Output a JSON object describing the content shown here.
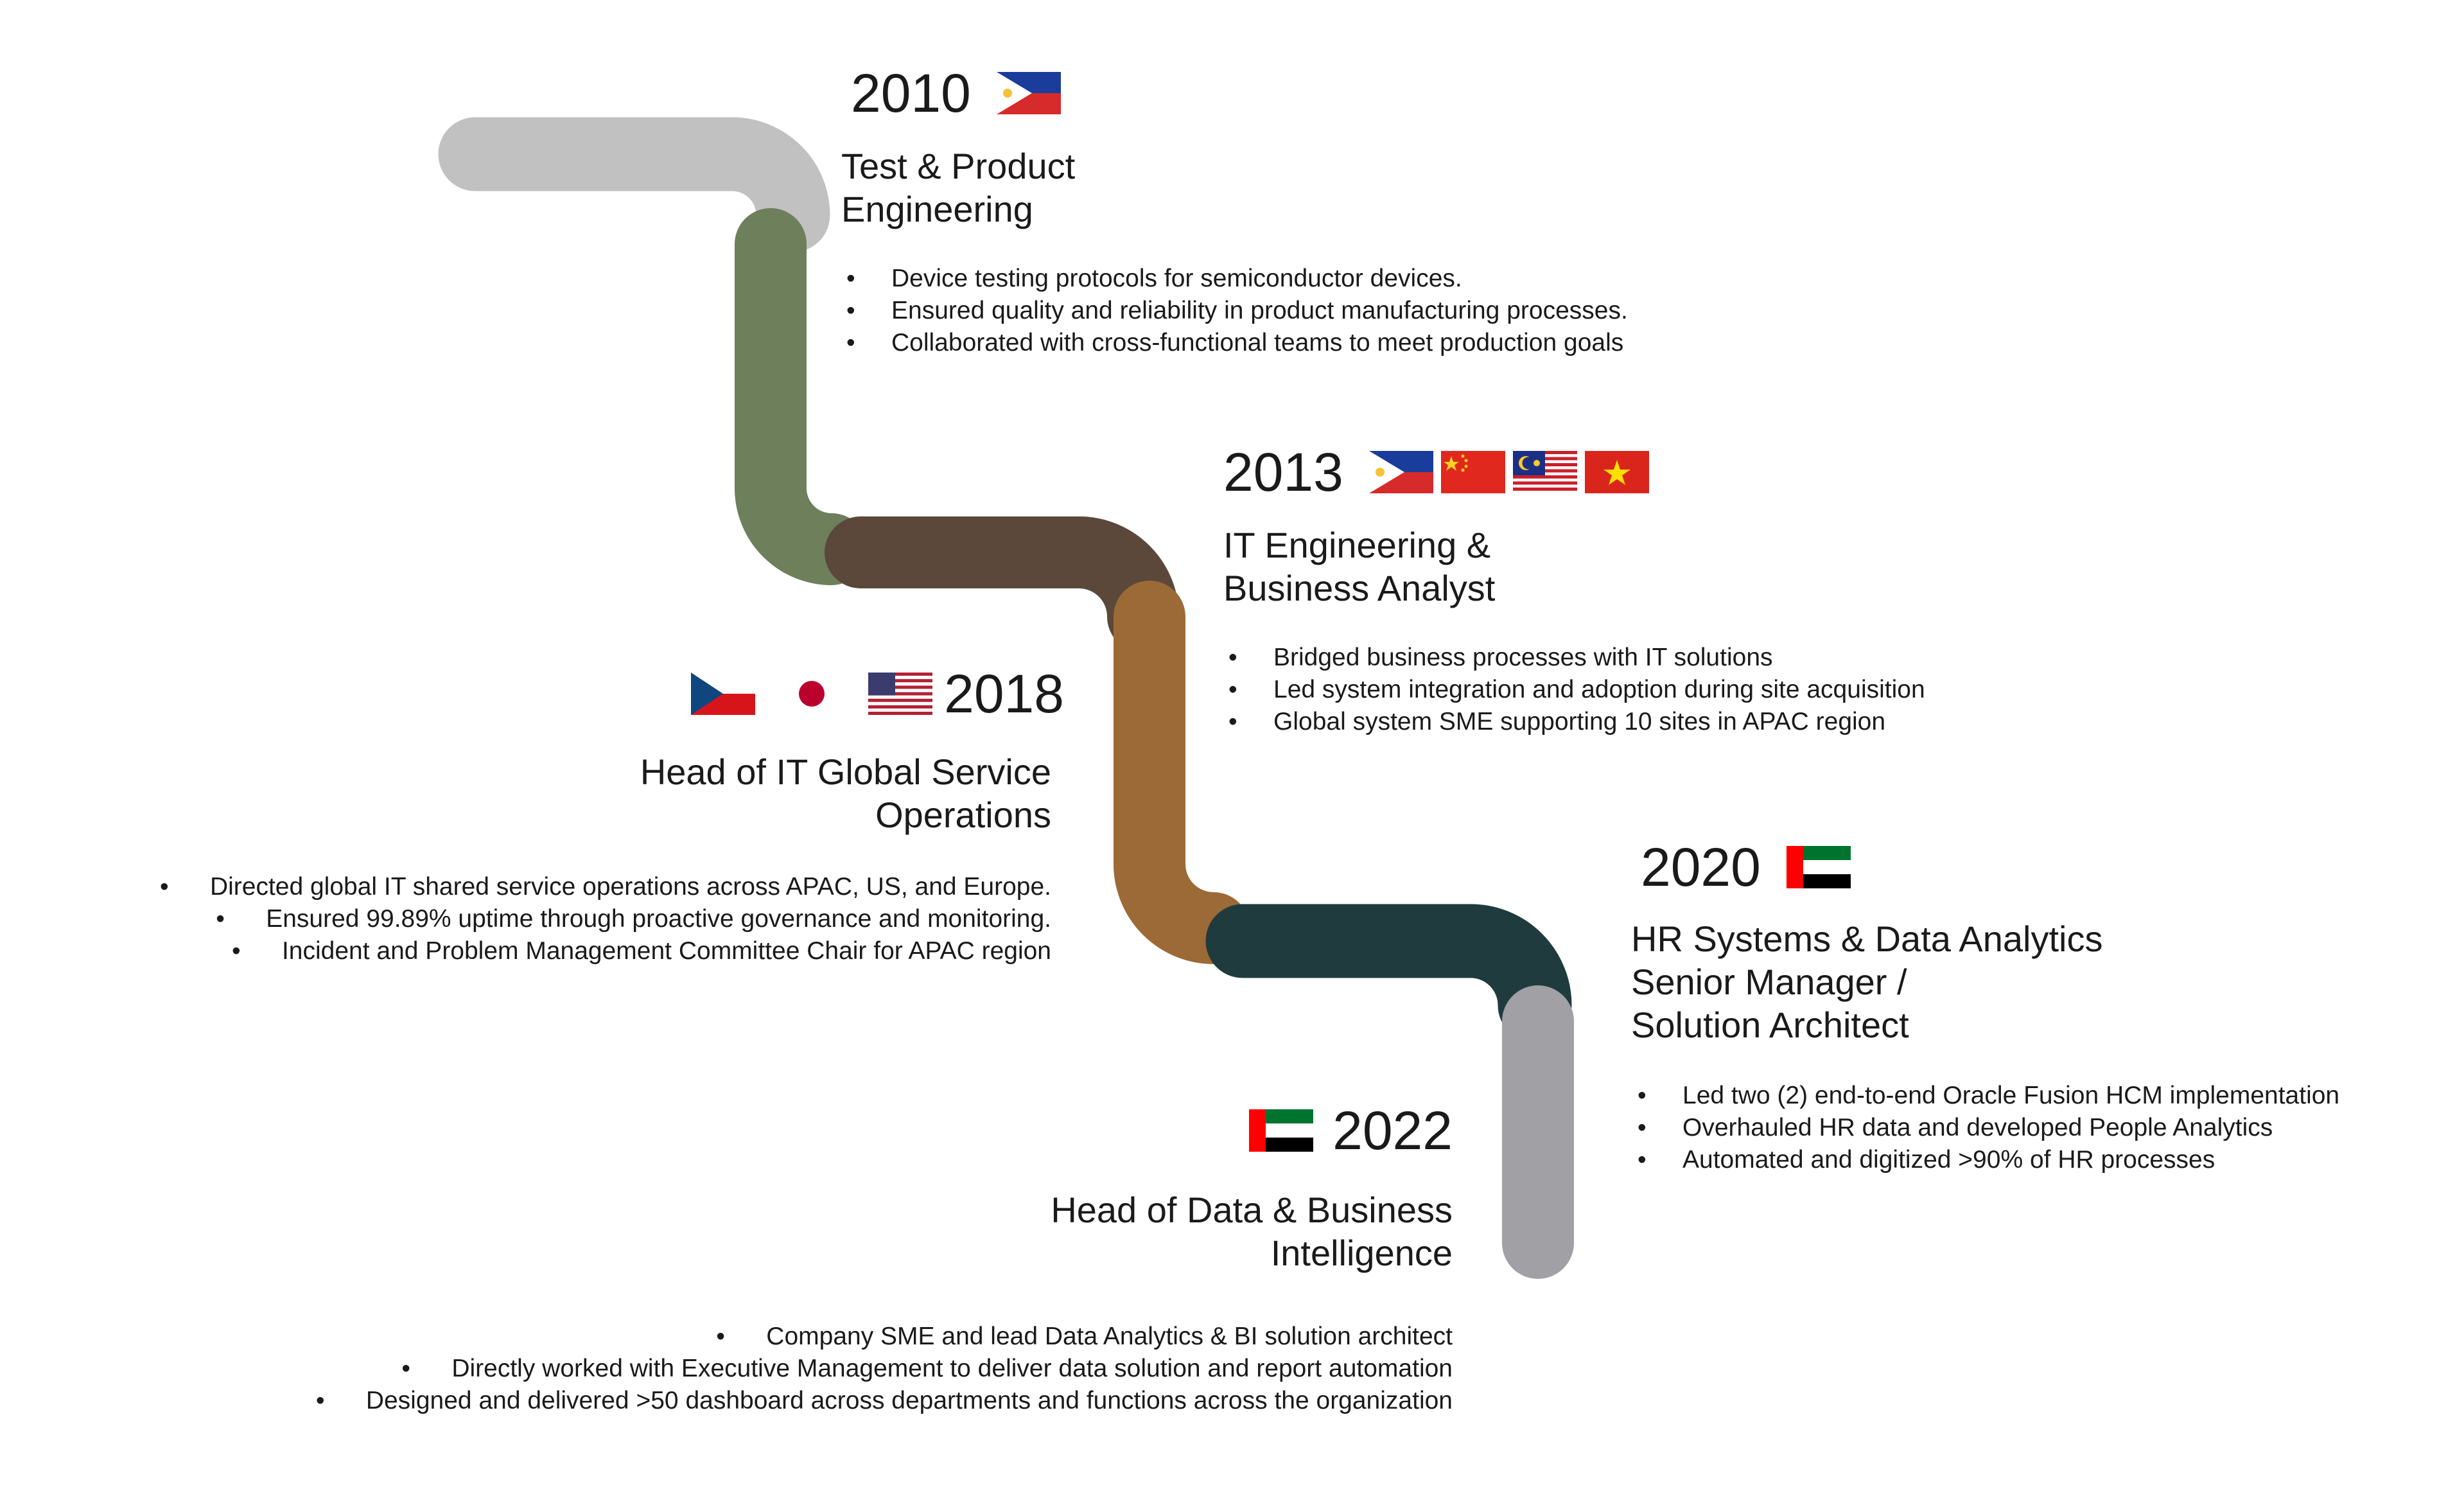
{
  "colors": {
    "segment_2010": "#c1c1c1",
    "segment_2013": "#6e7f5c",
    "segment_2018": "#5b483b",
    "segment_2020": "#9c6a36",
    "segment_2022": "#1f3b3d",
    "segment_end": "#a0a0a5"
  },
  "milestones": [
    {
      "year": "2010",
      "flags": [
        "philippines-flag"
      ],
      "title_line1": "Test & Product",
      "title_line2": "Engineering",
      "bullets": [
        "Device testing protocols for semiconductor devices.",
        "Ensured quality and reliability in product manufacturing processes.",
        "Collaborated with cross-functional teams to meet production goals"
      ]
    },
    {
      "year": "2013",
      "flags": [
        "philippines-flag",
        "china-flag",
        "malaysia-flag",
        "vietnam-flag"
      ],
      "title_line1": "IT Engineering &",
      "title_line2": "Business Analyst",
      "bullets": [
        "Bridged business processes with IT solutions",
        "Led system integration and adoption during site acquisition",
        "Global system SME supporting 10 sites in APAC region"
      ]
    },
    {
      "year": "2018",
      "flags": [
        "czech-republic-flag",
        "japan-flag",
        "usa-flag"
      ],
      "title_line1": "Head of IT Global Service",
      "title_line2": "Operations",
      "bullets": [
        "Directed global IT shared service operations across APAC, US, and Europe.",
        "Ensured 99.89% uptime through proactive governance and monitoring.",
        "Incident and Problem Management Committee Chair for APAC region"
      ]
    },
    {
      "year": "2020",
      "flags": [
        "uae-flag"
      ],
      "title_line1": "HR Systems & Data Analytics",
      "title_line2": "Senior Manager /",
      "title_line3": "Solution Architect",
      "bullets": [
        "Led two (2) end-to-end Oracle Fusion HCM implementation",
        "Overhauled HR data and developed People Analytics",
        "Automated and digitized >90% of HR processes"
      ]
    },
    {
      "year": "2022",
      "flags": [
        "uae-flag"
      ],
      "title_line1": "Head of Data & Business",
      "title_line2": "Intelligence",
      "bullets": [
        "Company SME and lead Data Analytics & BI solution architect",
        "Directly worked with Executive Management to deliver data solution and report automation",
        "Designed and delivered >50 dashboard across departments and functions across the organization"
      ]
    }
  ]
}
